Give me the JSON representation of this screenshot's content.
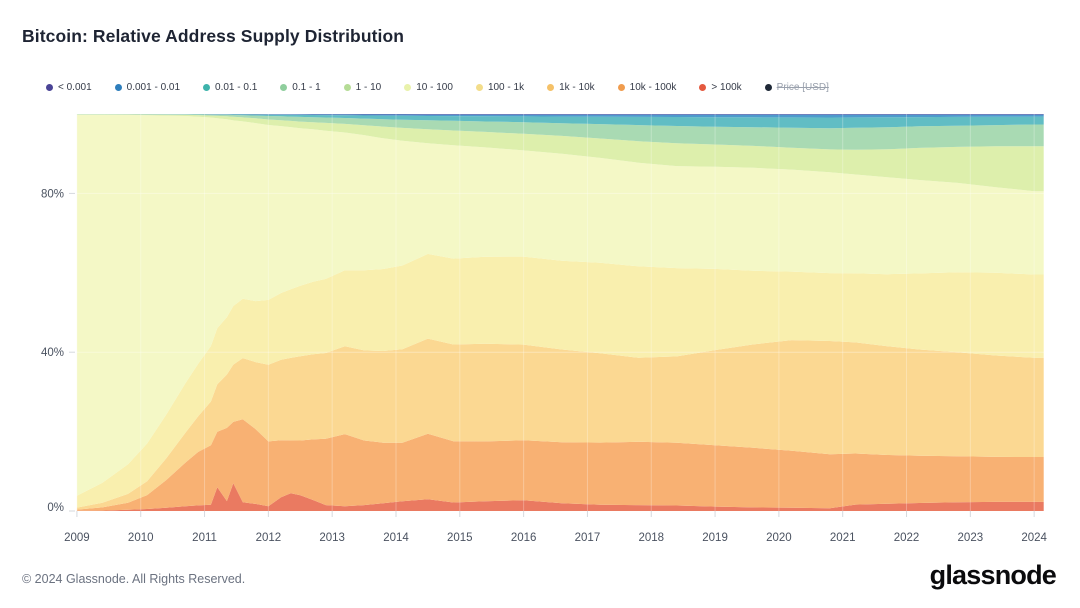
{
  "title": "Bitcoin: Relative Address Supply Distribution",
  "footer": {
    "copyright": "© 2024 Glassnode. All Rights Reserved.",
    "logo": "glassnode"
  },
  "legend": [
    {
      "label": "< 0.001",
      "color": "#4a4496",
      "disabled": false
    },
    {
      "label": "0.001 - 0.01",
      "color": "#2e7ebc",
      "disabled": false
    },
    {
      "label": "0.01 - 0.1",
      "color": "#3eb3ab",
      "disabled": false
    },
    {
      "label": "0.1 - 1",
      "color": "#8fce9d",
      "disabled": false
    },
    {
      "label": "1 - 10",
      "color": "#b5dc96",
      "disabled": false
    },
    {
      "label": "10 - 100",
      "color": "#e9f2ab",
      "disabled": false
    },
    {
      "label": "100 - 1k",
      "color": "#f3dd8a",
      "disabled": false
    },
    {
      "label": "1k - 10k",
      "color": "#f5c168",
      "disabled": false
    },
    {
      "label": "10k - 100k",
      "color": "#f09c4e",
      "disabled": false
    },
    {
      "label": "> 100k",
      "color": "#e4593f",
      "disabled": false
    },
    {
      "label": "Price [USD]",
      "color": "#1f2937",
      "disabled": true
    }
  ],
  "chart_data": {
    "type": "area",
    "stacked": true,
    "normalized_to_percent": true,
    "title": "Bitcoin: Relative Address Supply Distribution",
    "xlabel": "",
    "ylabel": "",
    "ylim": [
      0,
      100
    ],
    "xlim": [
      2008.97,
      2024.17
    ],
    "grid": "faint white overlay lines",
    "legend_position": "top",
    "ytick_values": [
      0,
      40,
      80
    ],
    "ytick_labels": [
      "0%",
      "40%",
      "80%"
    ],
    "xtick_values": [
      2009,
      2010,
      2011,
      2012,
      2013,
      2014,
      2015,
      2016,
      2017,
      2018,
      2019,
      2020,
      2021,
      2022,
      2023,
      2024
    ],
    "xtick_labels": [
      "2009",
      "2010",
      "2011",
      "2012",
      "2013",
      "2014",
      "2015",
      "2016",
      "2017",
      "2018",
      "2019",
      "2020",
      "2021",
      "2022",
      "2023",
      "2024"
    ],
    "x_years": [
      2009.0,
      2009.4,
      2009.8,
      2010.1,
      2010.4,
      2010.7,
      2010.9,
      2011.1,
      2011.2,
      2011.35,
      2011.45,
      2011.6,
      2011.8,
      2012.0,
      2012.2,
      2012.35,
      2012.5,
      2012.7,
      2012.9,
      2013.2,
      2013.5,
      2013.8,
      2014.1,
      2014.5,
      2014.9,
      2015.4,
      2016.0,
      2016.6,
      2017.2,
      2017.8,
      2018.4,
      2019.0,
      2019.6,
      2020.2,
      2020.8,
      2021.2,
      2021.7,
      2022.2,
      2022.8,
      2023.4,
      2024.0,
      2024.15
    ],
    "series": [
      {
        "name": "> 100k",
        "color": "#ea7a61",
        "values": [
          0.05,
          0.1,
          0.3,
          0.5,
          0.8,
          1.2,
          1.4,
          1.6,
          6.0,
          2.5,
          7.0,
          2.2,
          1.8,
          1.2,
          3.5,
          4.5,
          4.0,
          2.8,
          1.5,
          1.2,
          1.5,
          2.0,
          2.5,
          3.0,
          2.2,
          2.5,
          2.8,
          2.0,
          1.6,
          1.5,
          1.4,
          1.1,
          0.9,
          0.8,
          0.7,
          1.6,
          1.8,
          2.0,
          2.2,
          2.3,
          2.3,
          2.3
        ]
      },
      {
        "name": "10k - 100k",
        "color": "#f8b173",
        "values": [
          0.3,
          0.8,
          1.8,
          3.5,
          7.0,
          11.0,
          13.5,
          15.0,
          14.0,
          18.5,
          15.5,
          21.0,
          19.0,
          16.5,
          14.5,
          13.5,
          14.0,
          15.5,
          17.0,
          18.5,
          16.5,
          15.5,
          15.0,
          16.9,
          15.8,
          15.5,
          15.5,
          15.8,
          16.0,
          16.2,
          16.0,
          15.5,
          15.0,
          14.3,
          13.5,
          12.8,
          12.2,
          11.8,
          11.5,
          11.3,
          11.3,
          11.3
        ]
      },
      {
        "name": "1k - 10k",
        "color": "#fbd892",
        "values": [
          0.5,
          1.2,
          2.2,
          3.5,
          5.5,
          7.5,
          9.0,
          11.0,
          12.0,
          13.5,
          14.5,
          15.5,
          17.0,
          19.5,
          20.5,
          21.0,
          21.5,
          21.8,
          22.0,
          22.5,
          23.0,
          23.5,
          24.0,
          24.5,
          25.0,
          25.3,
          24.8,
          24.0,
          23.0,
          21.5,
          22.0,
          24.0,
          26.0,
          27.8,
          28.4,
          27.8,
          27.2,
          26.5,
          26.0,
          25.5,
          25.0,
          25.0
        ]
      },
      {
        "name": "100 - 1k",
        "color": "#f9efae",
        "values": [
          3.0,
          5.0,
          7.5,
          9.5,
          11.0,
          12.5,
          13.2,
          14.0,
          14.2,
          14.5,
          14.8,
          15.0,
          15.5,
          16.5,
          17.0,
          17.5,
          18.0,
          18.5,
          19.0,
          19.5,
          20.5,
          21.0,
          21.5,
          21.8,
          22.2,
          22.5,
          22.8,
          23.0,
          23.3,
          23.4,
          22.5,
          20.5,
          18.5,
          17.2,
          17.0,
          17.3,
          18.0,
          19.0,
          20.0,
          20.8,
          21.0,
          21.0
        ]
      },
      {
        "name": "10 - 100",
        "color": "#f4f8c6",
        "values": [
          96.0,
          92.7,
          88.0,
          82.7,
          75.3,
          67.3,
          62.3,
          57.6,
          53.0,
          50.0,
          46.9,
          44.9,
          45.2,
          44.5,
          42.5,
          41.3,
          40.2,
          39.0,
          38.0,
          35.3,
          34.5,
          33.5,
          32.0,
          28.5,
          29.3,
          28.3,
          27.5,
          27.7,
          27.0,
          26.5,
          26.0,
          25.8,
          25.9,
          25.6,
          25.3,
          24.7,
          24.2,
          23.3,
          22.3,
          21.5,
          21.0,
          21.0
        ]
      },
      {
        "name": "1 - 10",
        "color": "#ddefac",
        "values": [
          0.1,
          0.12,
          0.15,
          0.2,
          0.25,
          0.3,
          0.4,
          0.5,
          0.6,
          0.75,
          0.9,
          1.0,
          1.2,
          1.4,
          1.5,
          1.6,
          1.7,
          1.8,
          2.0,
          2.2,
          2.5,
          3.0,
          3.3,
          3.6,
          3.8,
          4.0,
          4.3,
          4.6,
          5.0,
          5.5,
          5.8,
          5.6,
          5.5,
          5.5,
          5.7,
          6.2,
          7.0,
          8.0,
          9.0,
          10.3,
          11.3,
          11.3
        ]
      },
      {
        "name": "0.1 - 1",
        "color": "#a9dab3",
        "values": [
          0.03,
          0.04,
          0.05,
          0.07,
          0.1,
          0.13,
          0.18,
          0.25,
          0.3,
          0.38,
          0.45,
          0.55,
          0.7,
          0.9,
          1.0,
          1.1,
          1.2,
          1.3,
          1.4,
          1.5,
          1.7,
          1.9,
          2.1,
          2.3,
          2.5,
          2.7,
          3.0,
          3.3,
          3.7,
          4.1,
          4.4,
          4.5,
          4.7,
          5.0,
          5.3,
          5.5,
          5.5,
          5.4,
          5.3,
          5.3,
          5.5,
          5.5
        ]
      },
      {
        "name": "0.01 - 0.1",
        "color": "#61bdc4",
        "values": [
          0.01,
          0.015,
          0.02,
          0.03,
          0.04,
          0.05,
          0.07,
          0.1,
          0.12,
          0.15,
          0.18,
          0.22,
          0.28,
          0.35,
          0.4,
          0.45,
          0.5,
          0.55,
          0.6,
          0.7,
          0.8,
          0.9,
          1.0,
          1.1,
          1.2,
          1.35,
          1.5,
          1.7,
          1.9,
          2.1,
          2.3,
          2.4,
          2.5,
          2.6,
          2.7,
          2.6,
          2.5,
          2.3,
          2.2,
          2.1,
          2.0,
          2.0
        ]
      },
      {
        "name": "0.001 - 0.01",
        "color": "#4d9bcd",
        "values": [
          0.005,
          0.006,
          0.008,
          0.01,
          0.013,
          0.016,
          0.02,
          0.03,
          0.035,
          0.04,
          0.05,
          0.06,
          0.08,
          0.1,
          0.12,
          0.13,
          0.15,
          0.17,
          0.19,
          0.22,
          0.26,
          0.3,
          0.33,
          0.37,
          0.4,
          0.44,
          0.48,
          0.52,
          0.56,
          0.6,
          0.62,
          0.65,
          0.68,
          0.7,
          0.72,
          0.7,
          0.68,
          0.62,
          0.58,
          0.55,
          0.5,
          0.5
        ]
      },
      {
        "name": "< 0.001",
        "color": "#6a62ab",
        "values": [
          0.003,
          0.004,
          0.005,
          0.006,
          0.008,
          0.01,
          0.012,
          0.015,
          0.018,
          0.02,
          0.025,
          0.03,
          0.04,
          0.05,
          0.06,
          0.07,
          0.08,
          0.09,
          0.1,
          0.11,
          0.12,
          0.13,
          0.14,
          0.15,
          0.15,
          0.15,
          0.15,
          0.15,
          0.15,
          0.15,
          0.15,
          0.15,
          0.15,
          0.15,
          0.15,
          0.15,
          0.15,
          0.15,
          0.15,
          0.15,
          0.15,
          0.15
        ]
      }
    ]
  }
}
